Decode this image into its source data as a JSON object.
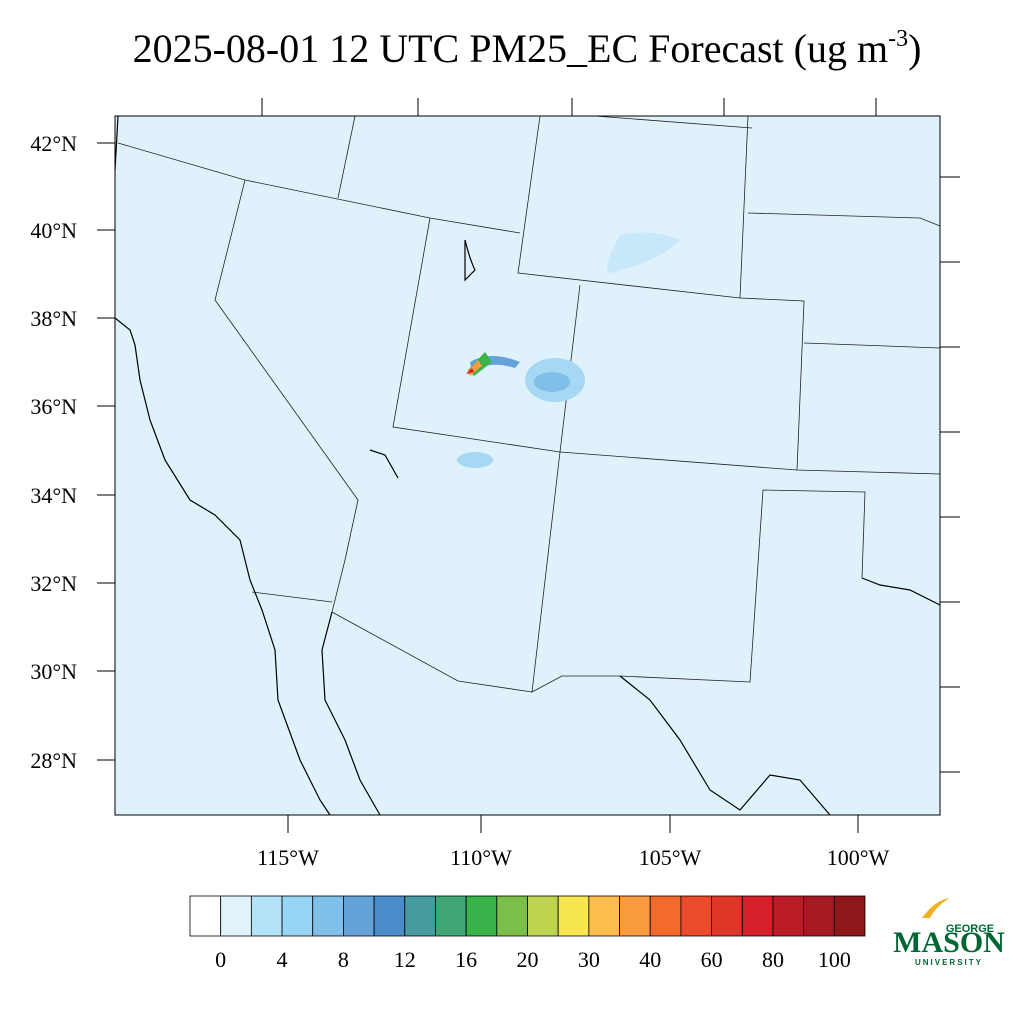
{
  "header": {
    "title": "2025-08-01 12 UTC PM25_EC Forecast (ug m",
    "title_sup": "-3",
    "title_end": ")"
  },
  "map": {
    "lat_labels": [
      "42°N",
      "40°N",
      "38°N",
      "36°N",
      "34°N",
      "32°N",
      "30°N",
      "28°N"
    ],
    "lon_labels": [
      "115°W",
      "110°W",
      "105°W",
      "100°W"
    ]
  },
  "colorbar": {
    "colors": [
      "#ffffff",
      "#e0f3fb",
      "#b4e2f7",
      "#97d5f5",
      "#80bfe8",
      "#64a3da",
      "#4a8bcb",
      "#469b9e",
      "#41a677",
      "#3ab34a",
      "#7bbf4a",
      "#bdd451",
      "#f7e64f",
      "#fbbd4c",
      "#f99b3f",
      "#f46a2a",
      "#ea4b2c",
      "#e03529",
      "#d3202a",
      "#bb1d26",
      "#a61b22",
      "#8e1719"
    ],
    "labels": [
      "0",
      "4",
      "8",
      "12",
      "16",
      "20",
      "30",
      "40",
      "60",
      "80",
      "100"
    ]
  },
  "logo": {
    "top": "GEORGE",
    "main": "MASON",
    "bottom": "UNIVERSITY"
  }
}
